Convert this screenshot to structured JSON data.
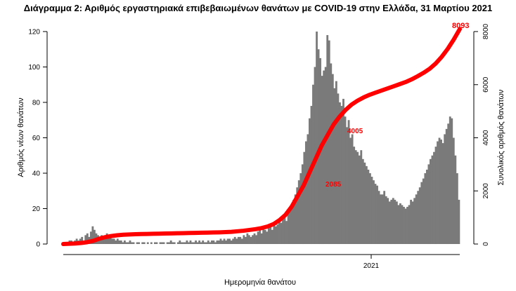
{
  "chart_data": {
    "type": "bar",
    "title": "Διάγραμμα 2: Αριθμός εργαστηριακά επιβεβαιωμένων θανάτων με COVID-19 στην Ελλάδα, 31 Μαρτίου 2021",
    "xlabel": "Ημερομηνία θανάτου",
    "ylabel_left": "Αριθμός νέων θανάτων",
    "ylabel_right": "Συνολικός αριθμός θανάτων",
    "x_tick_label": "2021",
    "y_left_ticks": [
      "0",
      "20",
      "40",
      "60",
      "80",
      "100",
      "120"
    ],
    "y_right_ticks": [
      "0",
      "2000",
      "4000",
      "6000",
      "8000"
    ],
    "y_left_lim": [
      0,
      120
    ],
    "y_right_lim": [
      0,
      8000
    ],
    "series": [
      {
        "name": "Αριθμός νέων θανάτων",
        "kind": "bar",
        "color": "#7a7a7a",
        "values": [
          1,
          1,
          1,
          2,
          2,
          1,
          2,
          3,
          2,
          3,
          4,
          2,
          5,
          6,
          4,
          7,
          10,
          8,
          6,
          5,
          4,
          5,
          3,
          4,
          6,
          5,
          4,
          3,
          3,
          2,
          3,
          2,
          2,
          1,
          2,
          1,
          1,
          2,
          1,
          1,
          0,
          1,
          1,
          0,
          1,
          1,
          0,
          1,
          0,
          1,
          0,
          1,
          1,
          0,
          1,
          1,
          1,
          0,
          1,
          1,
          2,
          1,
          1,
          0,
          1,
          2,
          1,
          1,
          1,
          2,
          1,
          2,
          1,
          1,
          2,
          1,
          2,
          1,
          2,
          1,
          1,
          2,
          1,
          2,
          2,
          1,
          2,
          2,
          3,
          2,
          3,
          2,
          3,
          3,
          2,
          3,
          4,
          3,
          4,
          4,
          3,
          5,
          4,
          6,
          5,
          4,
          5,
          6,
          5,
          7,
          8,
          6,
          9,
          8,
          7,
          9,
          10,
          8,
          12,
          10,
          11,
          13,
          12,
          14,
          16,
          13,
          18,
          20,
          22,
          25,
          28,
          32,
          36,
          40,
          45,
          52,
          58,
          62,
          71,
          78,
          90,
          100,
          120,
          110,
          105,
          95,
          98,
          100,
          118,
          115,
          102,
          96,
          88,
          92,
          85,
          80,
          78,
          82,
          72,
          66,
          70,
          60,
          62,
          55,
          53,
          52,
          50,
          53,
          48,
          46,
          44,
          42,
          40,
          38,
          36,
          34,
          33,
          30,
          28,
          28,
          30,
          27,
          26,
          24,
          25,
          26,
          25,
          24,
          22,
          23,
          22,
          21,
          20,
          21,
          22,
          25,
          24,
          26,
          28,
          30,
          32,
          35,
          37,
          40,
          42,
          45,
          48,
          50,
          52,
          55,
          58,
          60,
          59,
          57,
          62,
          65,
          68,
          72,
          71,
          60,
          50,
          40,
          25
        ]
      },
      {
        "name": "Συνολικός αριθμός θανάτων",
        "kind": "line",
        "color": "#ff0000",
        "values": [
          0,
          10,
          20,
          40,
          70,
          120,
          200,
          260,
          300,
          330,
          350,
          360,
          370,
          375,
          380,
          385,
          390,
          395,
          400,
          405,
          410,
          415,
          420,
          425,
          430,
          435,
          440,
          450,
          460,
          480,
          500,
          530,
          560,
          600,
          660,
          750,
          900,
          1100,
          1400,
          1800,
          2200,
          2700,
          3200,
          3700,
          4100,
          4500,
          4800,
          5050,
          5250,
          5400,
          5520,
          5620,
          5700,
          5780,
          5860,
          5940,
          6020,
          6100,
          6200,
          6320,
          6450,
          6600,
          6800,
          7050,
          7350,
          7700,
          8093
        ],
        "labels": [
          "2085",
          "4005",
          "8093"
        ]
      }
    ],
    "grid": false,
    "legend": "none"
  }
}
